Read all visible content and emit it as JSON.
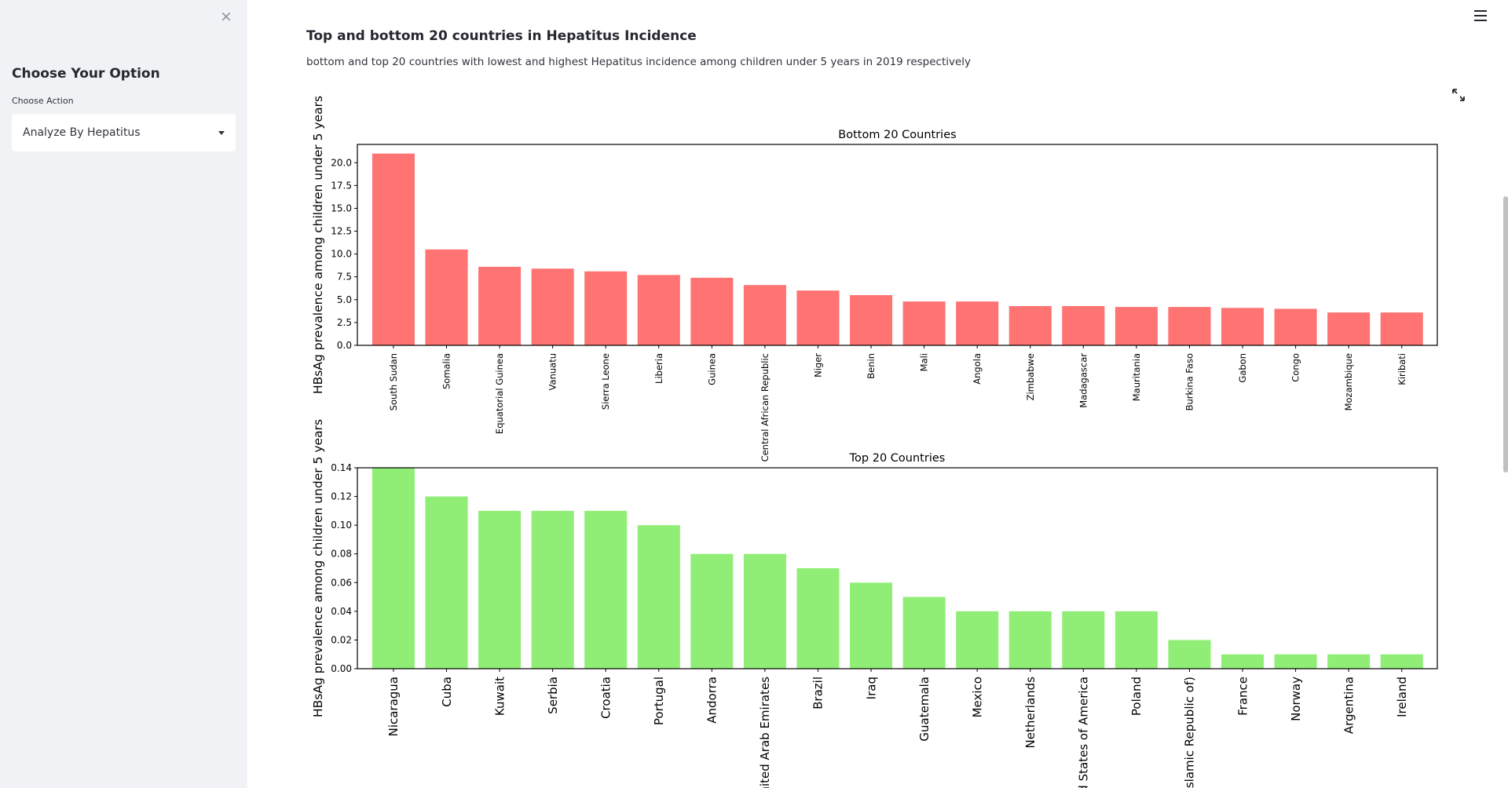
{
  "sidebar": {
    "close_glyph": "×",
    "heading": "Choose Your Option",
    "select_label": "Choose Action",
    "select_value": "Analyze By Hepatitus"
  },
  "main": {
    "title": "Top and bottom 20 countries in Hepatitus Incidence",
    "caption": "bottom and top 20 countries with lowest and highest Hepatitus incidence among children under 5 years in 2019 respectively"
  },
  "icons": {
    "close": "close-icon",
    "dropdown": "chevron-down-icon",
    "menu": "hamburger-menu-icon",
    "expand": "fullscreen-expand-icon"
  },
  "colors": {
    "sidebar_bg": "#f0f2f6",
    "bottom_bars": "#ff7373",
    "top_bars": "#90ee77"
  },
  "chart_data": [
    {
      "type": "bar",
      "title": "Bottom 20 Countries",
      "xlabel": "",
      "ylabel": "HBsAg prevalence among children under 5 years",
      "ylim": [
        0,
        22
      ],
      "yticks": [
        "0.0",
        "2.5",
        "5.0",
        "7.5",
        "10.0",
        "12.5",
        "15.0",
        "17.5",
        "20.0"
      ],
      "color": "#ff7373",
      "categories": [
        "South Sudan",
        "Somalia",
        "Equatorial Guinea",
        "Vanuatu",
        "Sierra Leone",
        "Liberia",
        "Guinea",
        "Central African Republic",
        "Niger",
        "Benin",
        "Mali",
        "Angola",
        "Zimbabwe",
        "Madagascar",
        "Mauritania",
        "Burkina Faso",
        "Gabon",
        "Congo",
        "Mozambique",
        "Kiribati"
      ],
      "values": [
        21.0,
        10.5,
        8.6,
        8.4,
        8.1,
        7.7,
        7.4,
        6.6,
        6.0,
        5.5,
        4.8,
        4.8,
        4.3,
        4.3,
        4.2,
        4.2,
        4.1,
        4.0,
        3.6,
        3.6
      ],
      "grid": false
    },
    {
      "type": "bar",
      "title": "Top 20 Countries",
      "xlabel": "",
      "ylabel": "HBsAg prevalence among children under 5 years",
      "ylim": [
        0,
        0.14
      ],
      "yticks": [
        "0.00",
        "0.02",
        "0.04",
        "0.06",
        "0.08",
        "0.10",
        "0.12",
        "0.14"
      ],
      "color": "#90ee77",
      "categories": [
        "Nicaragua",
        "Cuba",
        "Kuwait",
        "Serbia",
        "Croatia",
        "Portugal",
        "Andorra",
        "United Arab Emirates",
        "Brazil",
        "Iraq",
        "Guatemala",
        "Mexico",
        "Netherlands",
        "United States of America",
        "Poland",
        "Iran (Islamic Republic of)",
        "France",
        "Norway",
        "Argentina",
        "Ireland"
      ],
      "values": [
        0.14,
        0.12,
        0.11,
        0.11,
        0.11,
        0.1,
        0.08,
        0.08,
        0.07,
        0.06,
        0.05,
        0.04,
        0.04,
        0.04,
        0.04,
        0.02,
        0.01,
        0.01,
        0.01,
        0.01
      ],
      "grid": false
    }
  ]
}
